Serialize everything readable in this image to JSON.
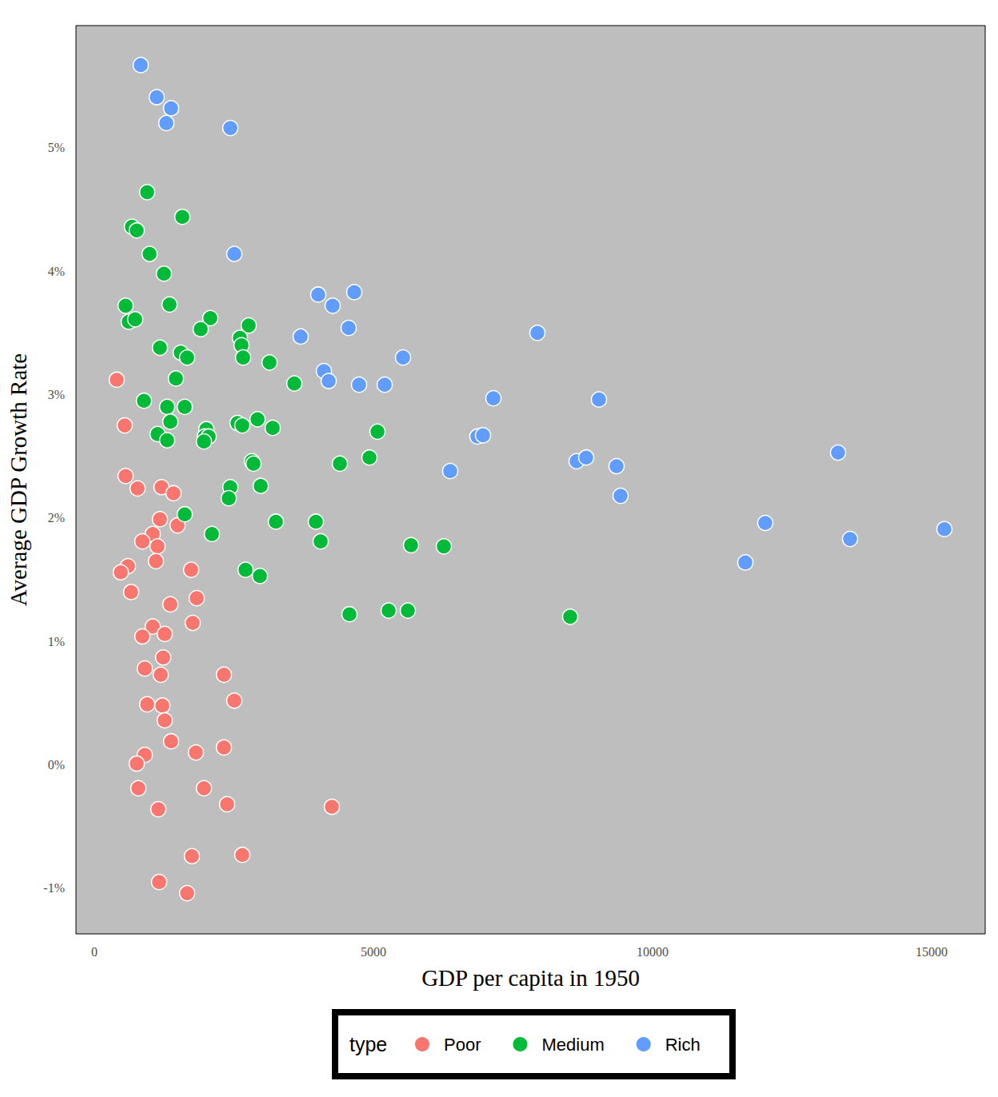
{
  "chart_data": {
    "type": "scatter",
    "xlabel": "GDP per capita in 1950",
    "ylabel": "Average GDP Growth Rate",
    "legend_title": "type",
    "legend": "bottom",
    "grid": false,
    "marker": "circle",
    "xlim": [
      -330,
      15960
    ],
    "ylim": [
      -1.37,
      5.99
    ],
    "xticks": [
      0,
      5000,
      10000,
      15000
    ],
    "yticks": [
      {
        "value": -1,
        "label": "-1%"
      },
      {
        "value": 0,
        "label": "0%"
      },
      {
        "value": 1,
        "label": "1%"
      },
      {
        "value": 2,
        "label": "2%"
      },
      {
        "value": 3,
        "label": "3%"
      },
      {
        "value": 4,
        "label": "4%"
      },
      {
        "value": 5,
        "label": "5%"
      }
    ],
    "series": [
      {
        "name": "Poor",
        "color": "#F8766D",
        "x": [
          401,
          544,
          559,
          774,
          1203,
          1418,
          1175,
          1046,
          1490,
          860,
          1132,
          1103,
          602,
          473,
          1734,
          659,
          1834,
          1361,
          1762,
          1046,
          860,
          1261,
          1232,
          903,
          1189,
          2321,
          946,
          1218,
          2507,
          1261,
          1375,
          2321,
          1819,
          903,
          759,
          788,
          1963,
          1146,
          2378,
          4255,
          1748,
          2650,
          1160,
          1662
        ],
        "values": [
          3.12,
          2.75,
          2.34,
          2.24,
          2.25,
          2.2,
          1.99,
          1.87,
          1.94,
          1.81,
          1.77,
          1.65,
          1.61,
          1.56,
          1.58,
          1.4,
          1.35,
          1.3,
          1.15,
          1.12,
          1.04,
          1.06,
          0.87,
          0.78,
          0.73,
          0.73,
          0.49,
          0.48,
          0.52,
          0.36,
          0.19,
          0.14,
          0.1,
          0.08,
          0.01,
          -0.19,
          -0.19,
          -0.36,
          -0.32,
          -0.34,
          -0.74,
          -0.73,
          -0.95,
          -1.04
        ]
      },
      {
        "name": "Medium",
        "color": "#00BA38",
        "x": [
          946,
          1576,
          673,
          759,
          989,
          1246,
          559,
          1347,
          616,
          731,
          2077,
          1905,
          2765,
          2607,
          2636,
          2665,
          1175,
          1547,
          1662,
          3138,
          1461,
          3582,
          888,
          1304,
          1619,
          1361,
          2564,
          2650,
          2923,
          3195,
          1132,
          2006,
          1977,
          2049,
          1304,
          1963,
          5072,
          4928,
          2822,
          2851,
          4398,
          2436,
          2980,
          2407,
          1619,
          3252,
          3968,
          2106,
          4054,
          5673,
          6261,
          2708,
          2966,
          4570,
          5272,
          5616,
          8524
        ],
        "values": [
          4.64,
          4.44,
          4.36,
          4.33,
          4.14,
          3.98,
          3.72,
          3.73,
          3.59,
          3.61,
          3.62,
          3.53,
          3.56,
          3.46,
          3.4,
          3.3,
          3.38,
          3.34,
          3.3,
          3.26,
          3.13,
          3.09,
          2.95,
          2.9,
          2.9,
          2.78,
          2.77,
          2.75,
          2.8,
          2.73,
          2.68,
          2.72,
          2.66,
          2.66,
          2.63,
          2.62,
          2.7,
          2.49,
          2.46,
          2.44,
          2.44,
          2.25,
          2.26,
          2.16,
          2.03,
          1.97,
          1.97,
          1.87,
          1.81,
          1.78,
          1.77,
          1.58,
          1.53,
          1.22,
          1.25,
          1.25,
          1.2
        ]
      },
      {
        "name": "Rich",
        "color": "#619CFF",
        "x": [
          831,
          1117,
          1375,
          1289,
          2436,
          2507,
          4011,
          4269,
          4656,
          4556,
          3696,
          7937,
          5530,
          4112,
          4198,
          4742,
          5201,
          7149,
          9040,
          6862,
          6963,
          8639,
          8811,
          9355,
          9427,
          6375,
          13324,
          12020,
          13539,
          15229,
          11662
        ],
        "values": [
          5.67,
          5.41,
          5.32,
          5.2,
          5.16,
          4.14,
          3.81,
          3.72,
          3.83,
          3.54,
          3.47,
          3.5,
          3.3,
          3.19,
          3.11,
          3.08,
          3.08,
          2.97,
          2.96,
          2.66,
          2.67,
          2.46,
          2.49,
          2.42,
          2.18,
          2.38,
          2.53,
          1.96,
          1.83,
          1.91,
          1.64
        ]
      }
    ]
  }
}
